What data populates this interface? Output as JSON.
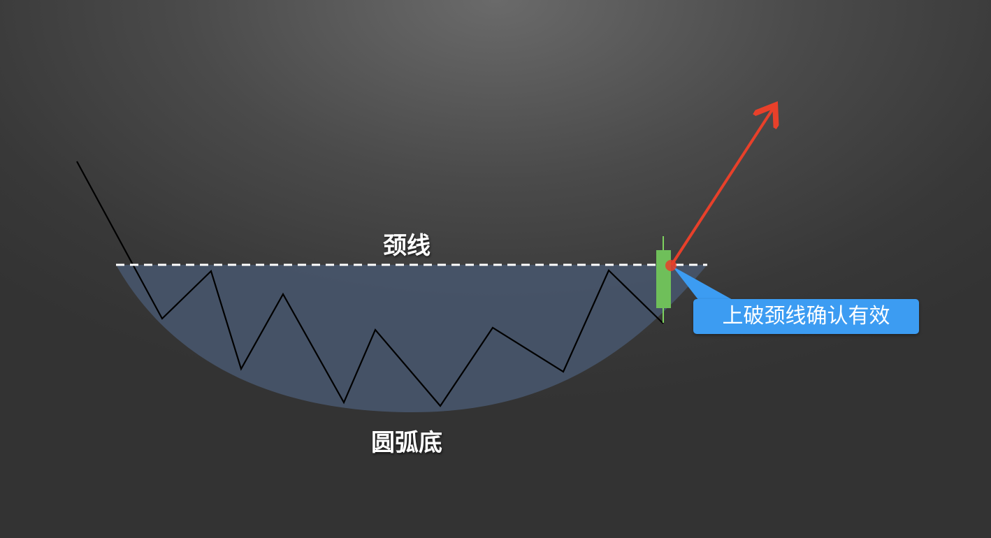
{
  "labels": {
    "neckline": "颈线",
    "pattern": "圆弧底",
    "callout": "上破颈线确认有效"
  },
  "colors": {
    "bowl_fill": "#47556b",
    "price_line": "#000000",
    "neckline": "#ffffff",
    "candle_body": "#6fbf5a",
    "candle_wick": "#7ed35f",
    "breakout_arrow": "#e8402a",
    "breakout_point": "#e8402a",
    "callout_bg": "#3c9cf2",
    "callout_text": "#ffffff"
  },
  "icons": {
    "breakout_arrow": "arrow-up-right-icon",
    "candle": "bullish-candlestick-icon"
  }
}
